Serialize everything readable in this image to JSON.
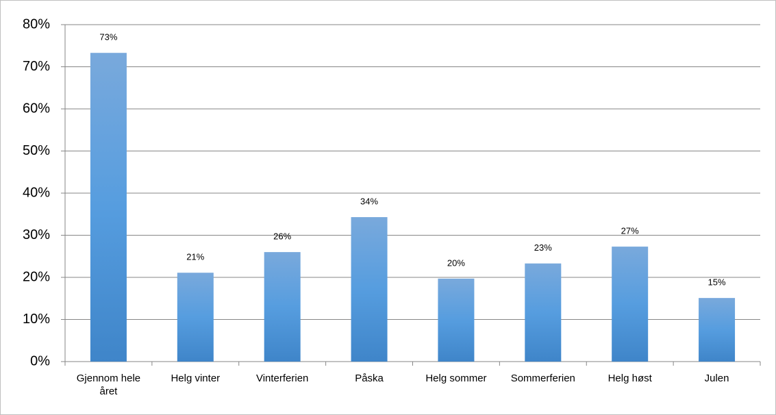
{
  "chart_data": {
    "type": "bar",
    "categories": [
      "Gjennom hele året",
      "Helg vinter",
      "Vinterferien",
      "Påska",
      "Helg sommer",
      "Sommerferien",
      "Helg høst",
      "Julen"
    ],
    "values": [
      73.3,
      21.1,
      26,
      34.3,
      19.7,
      23.3,
      27.3,
      15.1
    ],
    "value_labels": [
      "73%",
      "21%",
      "26%",
      "34%",
      "20%",
      "23%",
      "27%",
      "15%"
    ],
    "color": "#5b9bd5",
    "ylim": [
      0,
      80
    ],
    "yticks": [
      {
        "value": 0,
        "label": "0%"
      },
      {
        "value": 10,
        "label": "10%"
      },
      {
        "value": 20,
        "label": "20%"
      },
      {
        "value": 30,
        "label": "30%"
      },
      {
        "value": 40,
        "label": "40%"
      },
      {
        "value": 50,
        "label": "50%"
      },
      {
        "value": 60,
        "label": "60%"
      },
      {
        "value": 70,
        "label": "70%"
      },
      {
        "value": 80,
        "label": "80%"
      }
    ],
    "grid": true
  }
}
